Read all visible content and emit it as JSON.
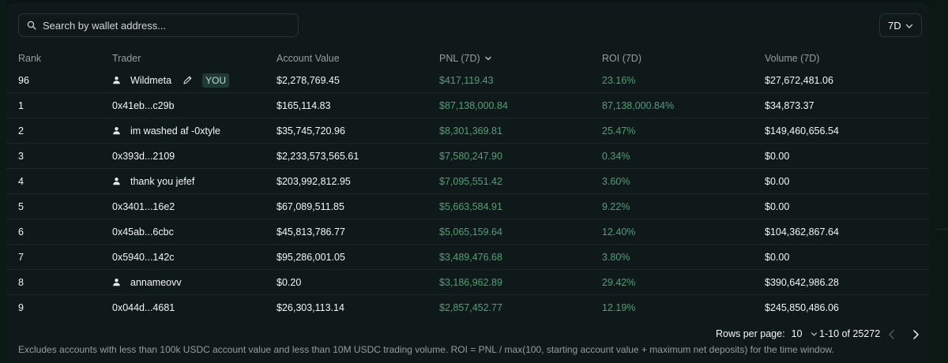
{
  "search": {
    "placeholder": "Search by wallet address..."
  },
  "period": {
    "selected": "7D"
  },
  "columns": {
    "rank": "Rank",
    "trader": "Trader",
    "account_value": "Account Value",
    "pnl": "PNL (7D)",
    "roi": "ROI (7D)",
    "volume": "Volume (7D)"
  },
  "rows": [
    {
      "rank": "96",
      "trader": "Wildmeta",
      "has_user_icon": true,
      "is_you": true,
      "you_label": "YOU",
      "account_value": "$2,278,769.45",
      "pnl": "$417,119.43",
      "roi": "23.16%",
      "volume": "$27,672,481.06"
    },
    {
      "rank": "1",
      "trader": "0x41eb...c29b",
      "has_user_icon": false,
      "account_value": "$165,114.83",
      "pnl": "$87,138,000.84",
      "roi": "87,138,000.84%",
      "volume": "$34,873.37"
    },
    {
      "rank": "2",
      "trader": "im washed af -0xtyle",
      "has_user_icon": true,
      "account_value": "$35,745,720.96",
      "pnl": "$8,301,369.81",
      "roi": "25.47%",
      "volume": "$149,460,656.54"
    },
    {
      "rank": "3",
      "trader": "0x393d...2109",
      "has_user_icon": false,
      "account_value": "$2,233,573,565.61",
      "pnl": "$7,580,247.90",
      "roi": "0.34%",
      "volume": "$0.00"
    },
    {
      "rank": "4",
      "trader": "thank you jefef",
      "has_user_icon": true,
      "account_value": "$203,992,812.95",
      "pnl": "$7,095,551.42",
      "roi": "3.60%",
      "volume": "$0.00"
    },
    {
      "rank": "5",
      "trader": "0x3401...16e2",
      "has_user_icon": false,
      "account_value": "$67,089,511.85",
      "pnl": "$5,663,584.91",
      "roi": "9.22%",
      "volume": "$0.00"
    },
    {
      "rank": "6",
      "trader": "0x45ab...6cbc",
      "has_user_icon": false,
      "account_value": "$45,813,786.77",
      "pnl": "$5,065,159.64",
      "roi": "12.40%",
      "volume": "$104,362,867.64"
    },
    {
      "rank": "7",
      "trader": "0x5940...142c",
      "has_user_icon": false,
      "account_value": "$95,286,001.05",
      "pnl": "$3,489,476.68",
      "roi": "3.80%",
      "volume": "$0.00"
    },
    {
      "rank": "8",
      "trader": "annameovv",
      "has_user_icon": true,
      "account_value": "$0.20",
      "pnl": "$3,186,962.89",
      "roi": "29.42%",
      "volume": "$390,642,986.28"
    },
    {
      "rank": "9",
      "trader": "0x044d...4681",
      "has_user_icon": false,
      "account_value": "$26,303,113.14",
      "pnl": "$2,857,452.77",
      "roi": "12.19%",
      "volume": "$245,850,486.06"
    }
  ],
  "pagination": {
    "rows_per_page_label": "Rows per page:",
    "rows_per_page": "10",
    "range": "1-10 of 25272"
  },
  "footnote": "Excludes accounts with less than 100k USDC account value and less than 10M USDC trading volume. ROI = PNL / max(100, starting account value + maximum net deposits) for the time window.",
  "colors": {
    "positive": "#49a374",
    "muted": "#949e9c",
    "panel": "#10191a",
    "page_bg": "#0a1612"
  },
  "icons": {
    "search": "search-icon",
    "dropdown": "chevron-down-icon",
    "user": "user-icon",
    "edit": "pencil-icon",
    "prev": "chevron-left-icon",
    "next": "chevron-right-icon"
  }
}
